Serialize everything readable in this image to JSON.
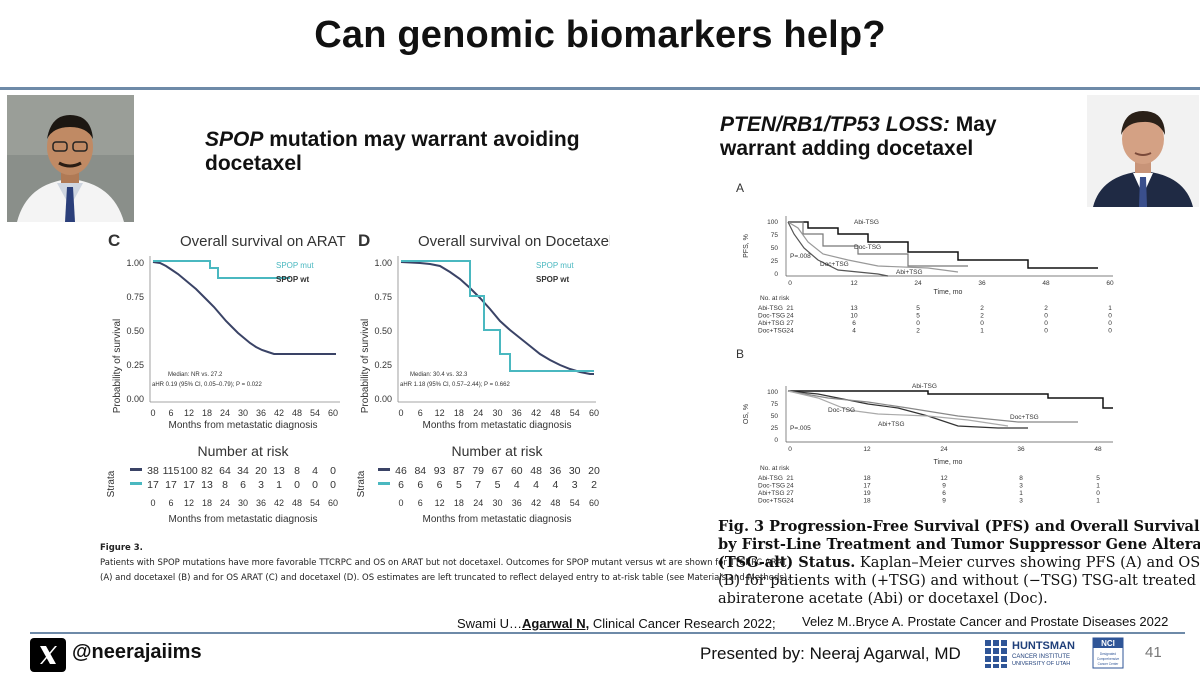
{
  "slide": {
    "title": "Can genomic biomarkers help?",
    "left_header_italic": "SPOP",
    "left_header_rest": " mutation may warrant avoiding",
    "left_header_line2": "docetaxel",
    "right_header_italic": "PTEN/RB1/TP53 LOSS:",
    "right_header_rest": " May",
    "right_header_line2": "warrant adding docetaxel",
    "page_number": "41"
  },
  "left_figure": {
    "panel_c_letter": "C",
    "panel_c_title": "Overall survival on ARAT",
    "panel_d_letter": "D",
    "panel_d_title": "Overall survival on Docetaxel",
    "y_axis_label": "Probability of survival",
    "x_axis_label": "Months from metastatic diagnosis",
    "legend_mut": "SPOP mut",
    "legend_wt": "SPOP wt",
    "c_median": "Median: NR vs. 27.2",
    "c_hr": "aHR 0.19 (95% CI, 0.05–0.79); P = 0.022",
    "d_median": "Median: 30.4 vs. 32.3",
    "d_hr": "aHR 1.18 (95% CI, 0.57–2.44); P = 0.662",
    "risk_title": "Number at risk",
    "strata_label": "Strata",
    "c_risk_wt": [
      "38",
      "115",
      "100",
      "82",
      "64",
      "34",
      "20",
      "13",
      "8",
      "4",
      "0"
    ],
    "c_risk_mut": [
      "17",
      "17",
      "17",
      "13",
      "8",
      "6",
      "3",
      "1",
      "0",
      "0",
      "0"
    ],
    "d_risk_wt": [
      "46",
      "84",
      "93",
      "87",
      "79",
      "67",
      "60",
      "48",
      "36",
      "30",
      "20"
    ],
    "d_risk_mut": [
      "6",
      "6",
      "6",
      "5",
      "7",
      "5",
      "4",
      "4",
      "4",
      "3",
      "2"
    ],
    "x_ticks": [
      "0",
      "6",
      "12",
      "18",
      "24",
      "30",
      "36",
      "42",
      "48",
      "54",
      "60"
    ],
    "y_ticks": [
      "1.00",
      "0.75",
      "0.50",
      "0.25",
      "0.00"
    ],
    "figure_label": "Figure 3.",
    "caption_line1": "Patients with SPOP mutations have more favorable TTCRPC and OS on ARAT but not docetaxel. Outcomes for SPOP mutant versus wt are shown for TTCRPC ARAT",
    "caption_line2": "(A) and docetaxel (B) and for OS ARAT (C) and docetaxel (D). OS estimates are left truncated to reflect delayed entry to at-risk table (see Materials and Methods)."
  },
  "right_figure": {
    "panel_a_letter": "A",
    "panel_b_letter": "B",
    "a_y_label": "PFS, %",
    "b_y_label": "OS, %",
    "x_label": "Time, mo",
    "a_p": "P=.008",
    "b_p": "P=.005",
    "a_x_ticks": [
      "0",
      "12",
      "24",
      "36",
      "48",
      "60"
    ],
    "b_x_ticks": [
      "0",
      "12",
      "24",
      "36",
      "48"
    ],
    "y_ticks": [
      "100",
      "75",
      "50",
      "25",
      "0"
    ],
    "a_curve_labels": [
      "Abi-TSG",
      "Doc-TSG",
      "Doc+TSG",
      "Abi+TSG"
    ],
    "b_curve_labels": [
      "Abi-TSG",
      "Doc-TSG",
      "Doc+TSG",
      "Abi+TSG"
    ],
    "risk_header": "No. at risk",
    "a_risk": [
      {
        "label": "Abi-TSG",
        "values": [
          "21",
          "13",
          "5",
          "2",
          "2",
          "1"
        ]
      },
      {
        "label": "Doc-TSG",
        "values": [
          "24",
          "10",
          "5",
          "2",
          "0",
          "0"
        ]
      },
      {
        "label": "Abi+TSG",
        "values": [
          "27",
          "6",
          "0",
          "0",
          "0",
          "0"
        ]
      },
      {
        "label": "Doc+TSG",
        "values": [
          "24",
          "4",
          "2",
          "1",
          "0",
          "0"
        ]
      }
    ],
    "b_risk": [
      {
        "label": "Abi-TSG",
        "values": [
          "21",
          "18",
          "12",
          "8",
          "5"
        ]
      },
      {
        "label": "Doc-TSG",
        "values": [
          "24",
          "17",
          "9",
          "3",
          "1"
        ]
      },
      {
        "label": "Abi+TSG",
        "values": [
          "27",
          "19",
          "6",
          "1",
          "0"
        ]
      },
      {
        "label": "Doc+TSG",
        "values": [
          "24",
          "18",
          "9",
          "3",
          "1"
        ]
      }
    ],
    "fig_caption_l1": "Fig. 3   Progression-Free Survival (PFS) and Overall Survival (OS)",
    "fig_caption_l2": "by First-Line Treatment and Tumor Suppressor Gene Alteration",
    "fig_caption_l3_bold": "(TSG-alt) Status.",
    "fig_caption_l3_rest": " Kaplan–Meier curves showing PFS (A) and OS",
    "fig_caption_l4": "(B) for patients with (+TSG) and without (−TSG) TSG-alt treated with",
    "fig_caption_l5": "abiraterone acetate (Abi) or docetaxel (Doc)."
  },
  "citations": {
    "swami_prefix": "Swami U…",
    "swami_author": "Agarwal N,",
    "swami_journal": " Clinical Cancer Research 2022;",
    "velez": "Velez M..Bryce A.  Prostate Cancer and Prostate Diseases 2022"
  },
  "footer": {
    "x_icon": "x-logo-icon",
    "handle": "@neerajaiims",
    "presenter": "Presented by: Neeraj Agarwal, MD",
    "logo_line1": "HUNTSMAN",
    "logo_line2": "CANCER INSTITUTE",
    "logo_line3": "UNIVERSITY OF UTAH",
    "nci_badge": "NCI",
    "nci_sub": "Designated Comprehensive Cancer Center"
  },
  "colors": {
    "accent_rule": "#6e8aa8",
    "km_navy": "#2f3a5a",
    "km_teal": "#4ab8c0"
  }
}
